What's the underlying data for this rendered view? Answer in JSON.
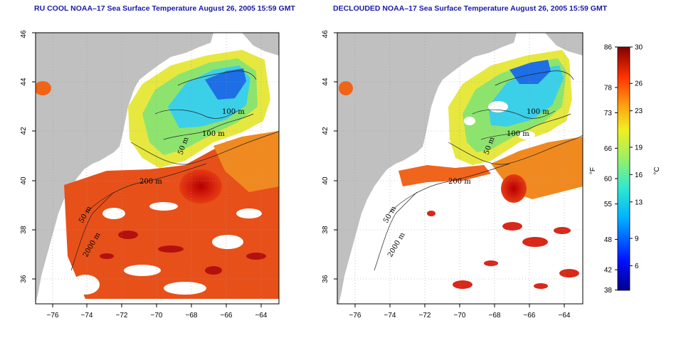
{
  "panels": [
    {
      "title": "RU COOL NOAA–17 Sea Surface Temperature August 26, 2005 15:59 GMT",
      "mode": "raw",
      "contour_labels": [
        "100 m",
        "100 m",
        "50 m",
        "200 m",
        "50 m",
        "2000 m"
      ]
    },
    {
      "title": "DECLOUDED NOAA–17 Sea Surface Temperature August 26, 2005 15:59 GMT",
      "mode": "declouded",
      "contour_labels": [
        "100 m",
        "100 m",
        "50 m",
        "200 m",
        "50 m",
        "2000 m"
      ]
    }
  ],
  "axes": {
    "lon_ticks": [
      "−76",
      "−74",
      "−72",
      "−70",
      "−68",
      "−66",
      "−64"
    ],
    "lat_ticks": [
      "36",
      "38",
      "40",
      "42",
      "44",
      "46"
    ],
    "lon_range": [
      -77,
      -63
    ],
    "lat_range": [
      35,
      46
    ]
  },
  "colorbar": {
    "fahrenheit_ticks": [
      "86",
      "78",
      "73",
      "66",
      "60",
      "55",
      "48",
      "42",
      "38"
    ],
    "celsius_ticks": [
      "30",
      "26",
      "23",
      "19",
      "16",
      "13",
      "9",
      "6"
    ],
    "fahrenheit_unit": "°F",
    "celsius_unit": "°C",
    "celsius_range": [
      3.3,
      30
    ]
  },
  "colors": {
    "land": "#c0c0c0",
    "ocean_cloud": "#ffffff",
    "title": "#1a1aa6"
  }
}
